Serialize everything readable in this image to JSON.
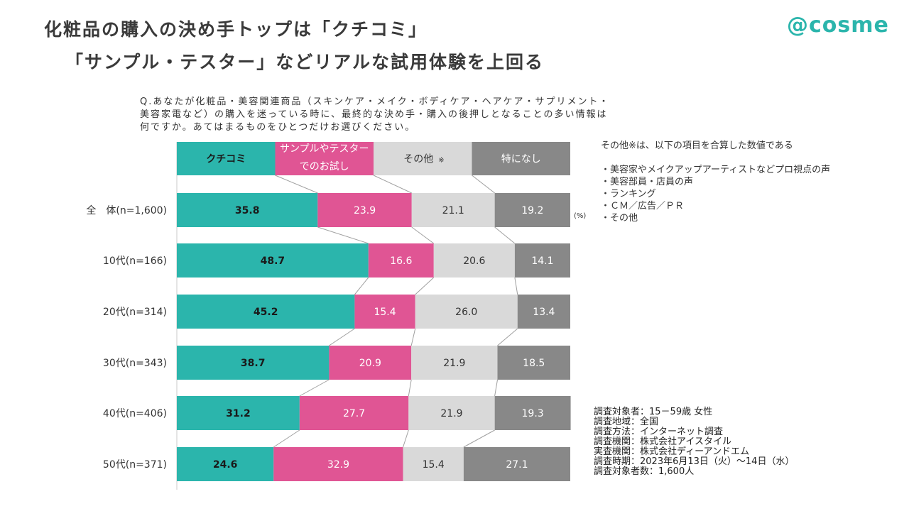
{
  "header": {
    "title_line1": "化粧品の購入の決め手トップは「クチコミ」",
    "title_line2": "「サンプル・テスター」などリアルな試用体験を上回る",
    "logo": "@cosme"
  },
  "question": {
    "lines": [
      "Q.あなたが化粧品・美容関連商品（スキンケア・メイク・ボディケア・ヘアケア・サプリメント・",
      "美容家電など）の購入を迷っている時に、最終的な決め手・購入の後押しとなることの多い情報は",
      "何ですか。あてはまるものをひとつだけお選びください。"
    ]
  },
  "note": {
    "heading": "その他※は、以下の項目を合算した数値である",
    "items": [
      "・美容家やメイクアップアーティストなどプロ視点の声",
      "・美容部員・店員の声",
      "・ランキング",
      "・ＣＭ／広告／ＰＲ",
      "・その他"
    ]
  },
  "survey": {
    "lines": [
      "調査対象者：15－59歳 女性",
      "調査地域：全国",
      "調査方法：インターネット調査",
      "調査機関：株式会社アイスタイル",
      "実査機関：株式会社ディーアンドエム",
      "調査時期：2023年6月13日（火）～14日（水）",
      "調査対象者数：1,600人"
    ]
  },
  "chart_data": {
    "type": "bar",
    "orientation": "horizontal-stacked-100",
    "unit": "(%)",
    "legend": [
      {
        "label": "クチコミ",
        "color": "#2bb5ac",
        "text_color": "#1a1a1a",
        "bold": true
      },
      {
        "label_lines": [
          "サンプルやテスター",
          "でのお試し"
        ],
        "color": "#e05594",
        "text_color": "#ffffff",
        "bold": false
      },
      {
        "label": "その他",
        "suffix": "※",
        "color": "#d9d9d9",
        "text_color": "#333333",
        "bold": false
      },
      {
        "label": "特になし",
        "color": "#888888",
        "text_color": "#ffffff",
        "bold": false
      }
    ],
    "categories": [
      "全　体(n=1,600)",
      "10代(n=166)",
      "20代(n=314)",
      "30代(n=343)",
      "40代(n=406)",
      "50代(n=371)"
    ],
    "series": [
      {
        "name": "クチコミ",
        "values": [
          35.8,
          48.7,
          45.2,
          38.7,
          31.2,
          24.6
        ]
      },
      {
        "name": "サンプルやテスターでのお試し",
        "values": [
          23.9,
          16.6,
          15.4,
          20.9,
          27.7,
          32.9
        ]
      },
      {
        "name": "その他※",
        "values": [
          21.1,
          20.6,
          26.0,
          21.9,
          21.9,
          15.4
        ]
      },
      {
        "name": "特になし",
        "values": [
          19.2,
          14.1,
          13.4,
          18.5,
          19.3,
          27.1
        ]
      }
    ],
    "xlim": [
      0,
      100
    ]
  }
}
